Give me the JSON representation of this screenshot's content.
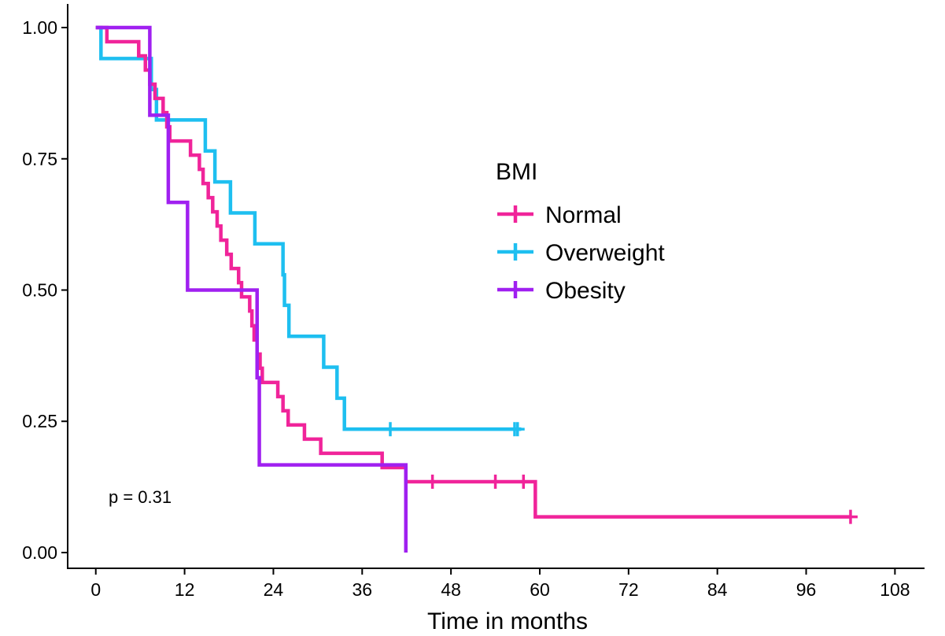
{
  "chart_data": {
    "type": "line",
    "subtype": "kaplan-meier step",
    "xlabel": "Time in months",
    "ylabel": "",
    "xlim": [
      -3.8,
      112
    ],
    "ylim": [
      -0.03,
      1.045
    ],
    "x_ticks": [
      0,
      12,
      24,
      36,
      48,
      60,
      72,
      84,
      96,
      108
    ],
    "y_ticks": [
      0.0,
      0.25,
      0.5,
      0.75,
      1.0
    ],
    "y_tick_labels": [
      "0.00",
      "0.25",
      "0.50",
      "0.75",
      "1.00"
    ],
    "grid": false,
    "legend": {
      "title": "BMI",
      "position": "right-center",
      "entries": [
        "Normal",
        "Overweight",
        "Obesity"
      ]
    },
    "annotation": "p = 0.31",
    "series": [
      {
        "name": "Normal",
        "color": "#F0249A",
        "steps": [
          [
            0,
            1.0
          ],
          [
            1.5,
            0.973
          ],
          [
            5.8,
            0.946
          ],
          [
            6.7,
            0.919
          ],
          [
            7.3,
            0.892
          ],
          [
            8.0,
            0.865
          ],
          [
            9.1,
            0.838
          ],
          [
            9.6,
            0.811
          ],
          [
            10.0,
            0.784
          ],
          [
            12.8,
            0.757
          ],
          [
            14.0,
            0.73
          ],
          [
            14.5,
            0.703
          ],
          [
            15.2,
            0.676
          ],
          [
            15.8,
            0.649
          ],
          [
            16.4,
            0.622
          ],
          [
            16.9,
            0.595
          ],
          [
            17.7,
            0.568
          ],
          [
            18.3,
            0.541
          ],
          [
            19.3,
            0.514
          ],
          [
            19.7,
            0.487
          ],
          [
            20.8,
            0.46
          ],
          [
            21.1,
            0.432
          ],
          [
            21.4,
            0.405
          ],
          [
            21.8,
            0.378
          ],
          [
            22.2,
            0.351
          ],
          [
            22.5,
            0.324
          ],
          [
            24.6,
            0.297
          ],
          [
            25.3,
            0.27
          ],
          [
            26.0,
            0.243
          ],
          [
            28.2,
            0.216
          ],
          [
            30.4,
            0.189
          ],
          [
            38.7,
            0.162
          ],
          [
            41.9,
            0.135
          ],
          [
            59.4,
            0.068
          ],
          [
            102,
            0.068
          ]
        ],
        "censored": [
          45.5,
          54.0,
          57.8,
          102.0
        ]
      },
      {
        "name": "Overweight",
        "color": "#1EBFF0",
        "steps": [
          [
            0,
            1.0
          ],
          [
            0.7,
            0.941
          ],
          [
            7.5,
            0.882
          ],
          [
            8.2,
            0.824
          ],
          [
            14.8,
            0.765
          ],
          [
            16.1,
            0.706
          ],
          [
            18.2,
            0.647
          ],
          [
            21.5,
            0.588
          ],
          [
            25.3,
            0.529
          ],
          [
            25.5,
            0.471
          ],
          [
            26.1,
            0.412
          ],
          [
            30.8,
            0.353
          ],
          [
            32.6,
            0.294
          ],
          [
            33.6,
            0.235
          ],
          [
            57.5,
            0.235
          ]
        ],
        "censored": [
          39.8,
          56.6,
          57.0
        ]
      },
      {
        "name": "Obesity",
        "color": "#A020F0",
        "steps": [
          [
            0,
            1.0
          ],
          [
            7.3,
            0.833
          ],
          [
            9.8,
            0.667
          ],
          [
            12.4,
            0.5
          ],
          [
            21.8,
            0.333
          ],
          [
            22.1,
            0.167
          ],
          [
            41.9,
            0.0
          ]
        ],
        "censored": []
      }
    ]
  }
}
